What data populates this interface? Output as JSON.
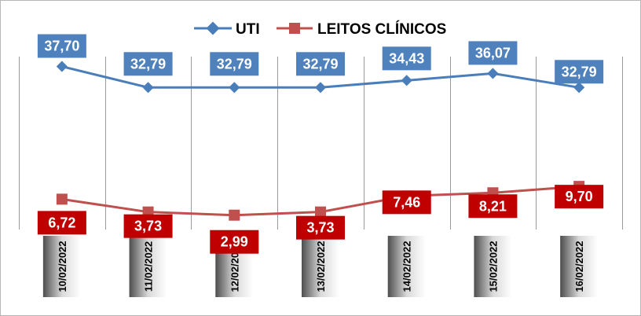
{
  "chart_data": {
    "type": "line",
    "title": "",
    "xlabel": "",
    "ylabel": "",
    "ylim": [
      0,
      40
    ],
    "grid": "vertical",
    "legend_position": "top-center",
    "categories": [
      "10/02/2022",
      "11/02/2022",
      "12/02/2022",
      "13/02/2022",
      "14/02/2022",
      "15/02/2022",
      "16/02/2022"
    ],
    "series": [
      {
        "name": "UTI",
        "color": "#4a7ebb",
        "label_bg": "#4f81bd",
        "marker": "diamond",
        "values": [
          37.7,
          32.79,
          32.79,
          32.79,
          34.43,
          36.07,
          32.79
        ],
        "labels": [
          "37,70",
          "32,79",
          "32,79",
          "32,79",
          "34,43",
          "36,07",
          "32,79"
        ]
      },
      {
        "name": "LEITOS CLÍNICOS",
        "color": "#c0504d",
        "label_bg": "#c00000",
        "marker": "square",
        "values": [
          6.72,
          3.73,
          2.99,
          3.73,
          7.46,
          8.21,
          9.7
        ],
        "labels": [
          "6,72",
          "3,73",
          "2,99",
          "3,73",
          "7,46",
          "8,21",
          "9,70"
        ]
      }
    ]
  }
}
